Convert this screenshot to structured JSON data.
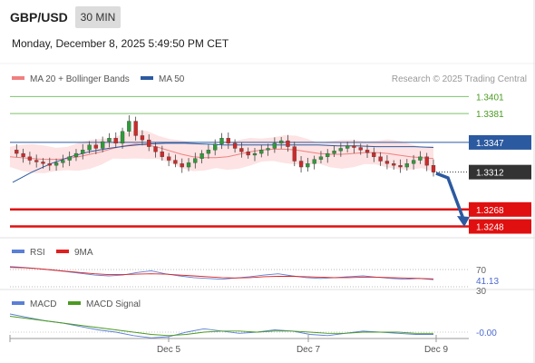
{
  "header": {
    "symbol": "GBP/USD",
    "timeframe": "30 MIN",
    "datetime": "Monday, December 8, 2025 5:49:50 PM CET"
  },
  "main_panel": {
    "legend": [
      {
        "label": "MA 20 + Bollinger Bands",
        "color": "#f08080"
      },
      {
        "label": "MA 50",
        "color": "#2c5aa0"
      }
    ],
    "copyright": "Research © 2025 Trading Central"
  },
  "rsi_panel": {
    "legend": [
      {
        "label": "RSI",
        "color": "#5b7fd6"
      },
      {
        "label": "9MA",
        "color": "#e02020"
      }
    ],
    "levels": [
      "70",
      "41.13",
      "30"
    ]
  },
  "macd_panel": {
    "legend": [
      {
        "label": "MACD",
        "color": "#5b7fd6"
      },
      {
        "label": "MACD Signal",
        "color": "#4a9a20"
      }
    ],
    "value_label": "-0.00"
  },
  "chart_data": {
    "type": "candlestick",
    "instrument": "GBP/USD",
    "timeframe": "30 MIN",
    "x_tick_labels": [
      "Dec 5",
      "Dec 7",
      "Dec 9"
    ],
    "y_range": [
      1.324,
      1.341
    ],
    "levels": [
      {
        "label": "1.3401",
        "value": 1.3401,
        "color": "#7cc36a",
        "style": "line",
        "tag": false
      },
      {
        "label": "1.3381",
        "value": 1.3381,
        "color": "#7cc36a",
        "style": "line",
        "tag": false
      },
      {
        "label": "1.3347",
        "value": 1.3347,
        "color": "#2c5aa0",
        "style": "line",
        "tag": true
      },
      {
        "label": "1.3312",
        "value": 1.3312,
        "color": "#333333",
        "style": "dotted",
        "tag": true
      },
      {
        "label": "1.3268",
        "value": 1.3268,
        "color": "#e01010",
        "style": "thick",
        "tag": true
      },
      {
        "label": "1.3248",
        "value": 1.3248,
        "color": "#e01010",
        "style": "thick",
        "tag": true
      }
    ],
    "close_series": [
      1.3338,
      1.3334,
      1.333,
      1.3326,
      1.3324,
      1.3322,
      1.332,
      1.3323,
      1.3326,
      1.333,
      1.3334,
      1.3338,
      1.3344,
      1.334,
      1.3348,
      1.3352,
      1.3346,
      1.336,
      1.3372,
      1.3355,
      1.335,
      1.3342,
      1.3336,
      1.333,
      1.3326,
      1.3322,
      1.3318,
      1.3323,
      1.3328,
      1.3334,
      1.3338,
      1.3345,
      1.3352,
      1.3346,
      1.334,
      1.3336,
      1.3332,
      1.3334,
      1.3338,
      1.334,
      1.3346,
      1.3349,
      1.3342,
      1.3325,
      1.3318,
      1.3322,
      1.3327,
      1.333,
      1.3334,
      1.3337,
      1.334,
      1.3343,
      1.3341,
      1.3338,
      1.3335,
      1.333,
      1.3325,
      1.3322,
      1.332,
      1.3318,
      1.3322,
      1.3326,
      1.333,
      1.332,
      1.3312
    ],
    "ma20": [
      1.333,
      1.3329,
      1.3328,
      1.3327,
      1.3327,
      1.3328,
      1.333,
      1.3333,
      1.3336,
      1.334,
      1.3343,
      1.3345,
      1.3344,
      1.3341,
      1.3337,
      1.3333,
      1.333,
      1.3329,
      1.3329,
      1.333,
      1.3333,
      1.3336,
      1.3338,
      1.3339,
      1.3339,
      1.3338,
      1.3336,
      1.3334,
      1.3333,
      1.3333,
      1.3334,
      1.3335,
      1.3335,
      1.3334,
      1.3332,
      1.333,
      1.3329,
      1.3328
    ],
    "ma50": [
      1.33,
      1.3312,
      1.3322,
      1.333,
      1.3336,
      1.334,
      1.3343,
      1.3345,
      1.3346,
      1.3346,
      1.3345,
      1.3344,
      1.3344,
      1.3344,
      1.3344,
      1.3344,
      1.3344,
      1.3343,
      1.3343,
      1.3342,
      1.3342,
      1.3342,
      1.3341
    ],
    "rsi": [
      72,
      70,
      67,
      64,
      60,
      56,
      52,
      50,
      52,
      58,
      62,
      55,
      50,
      46,
      44,
      42,
      45,
      48,
      52,
      55,
      50,
      46,
      44,
      46,
      48,
      50,
      47,
      44,
      42,
      44,
      41
    ],
    "rsi_9ma": [
      70,
      69,
      67,
      64,
      61,
      58,
      55,
      53,
      53,
      54,
      55,
      54,
      52,
      50,
      48,
      46,
      45,
      46,
      48,
      49,
      49,
      48,
      47,
      46,
      46,
      47,
      47,
      46,
      45,
      44,
      43
    ],
    "macd": [
      0.0016,
      0.0013,
      0.001,
      0.0008,
      0.0005,
      0.0002,
      0.0,
      -0.0003,
      -0.0005,
      -0.0004,
      0.0,
      0.0003,
      0.0001,
      -0.0001,
      0.0,
      0.0002,
      0.0001,
      -0.0002,
      -0.0003,
      -0.0001,
      0.0001,
      0.0,
      -0.0001,
      -0.0002,
      -0.0002
    ],
    "macd_signal": [
      0.0014,
      0.0012,
      0.001,
      0.0008,
      0.0006,
      0.0004,
      0.0002,
      0.0,
      -0.0002,
      -0.0003,
      -0.0002,
      0.0,
      0.0001,
      0.0001,
      0.0,
      0.0001,
      0.0001,
      0.0,
      -0.0001,
      -0.0001,
      0.0,
      0.0,
      0.0,
      -0.0001,
      -0.0001
    ]
  }
}
